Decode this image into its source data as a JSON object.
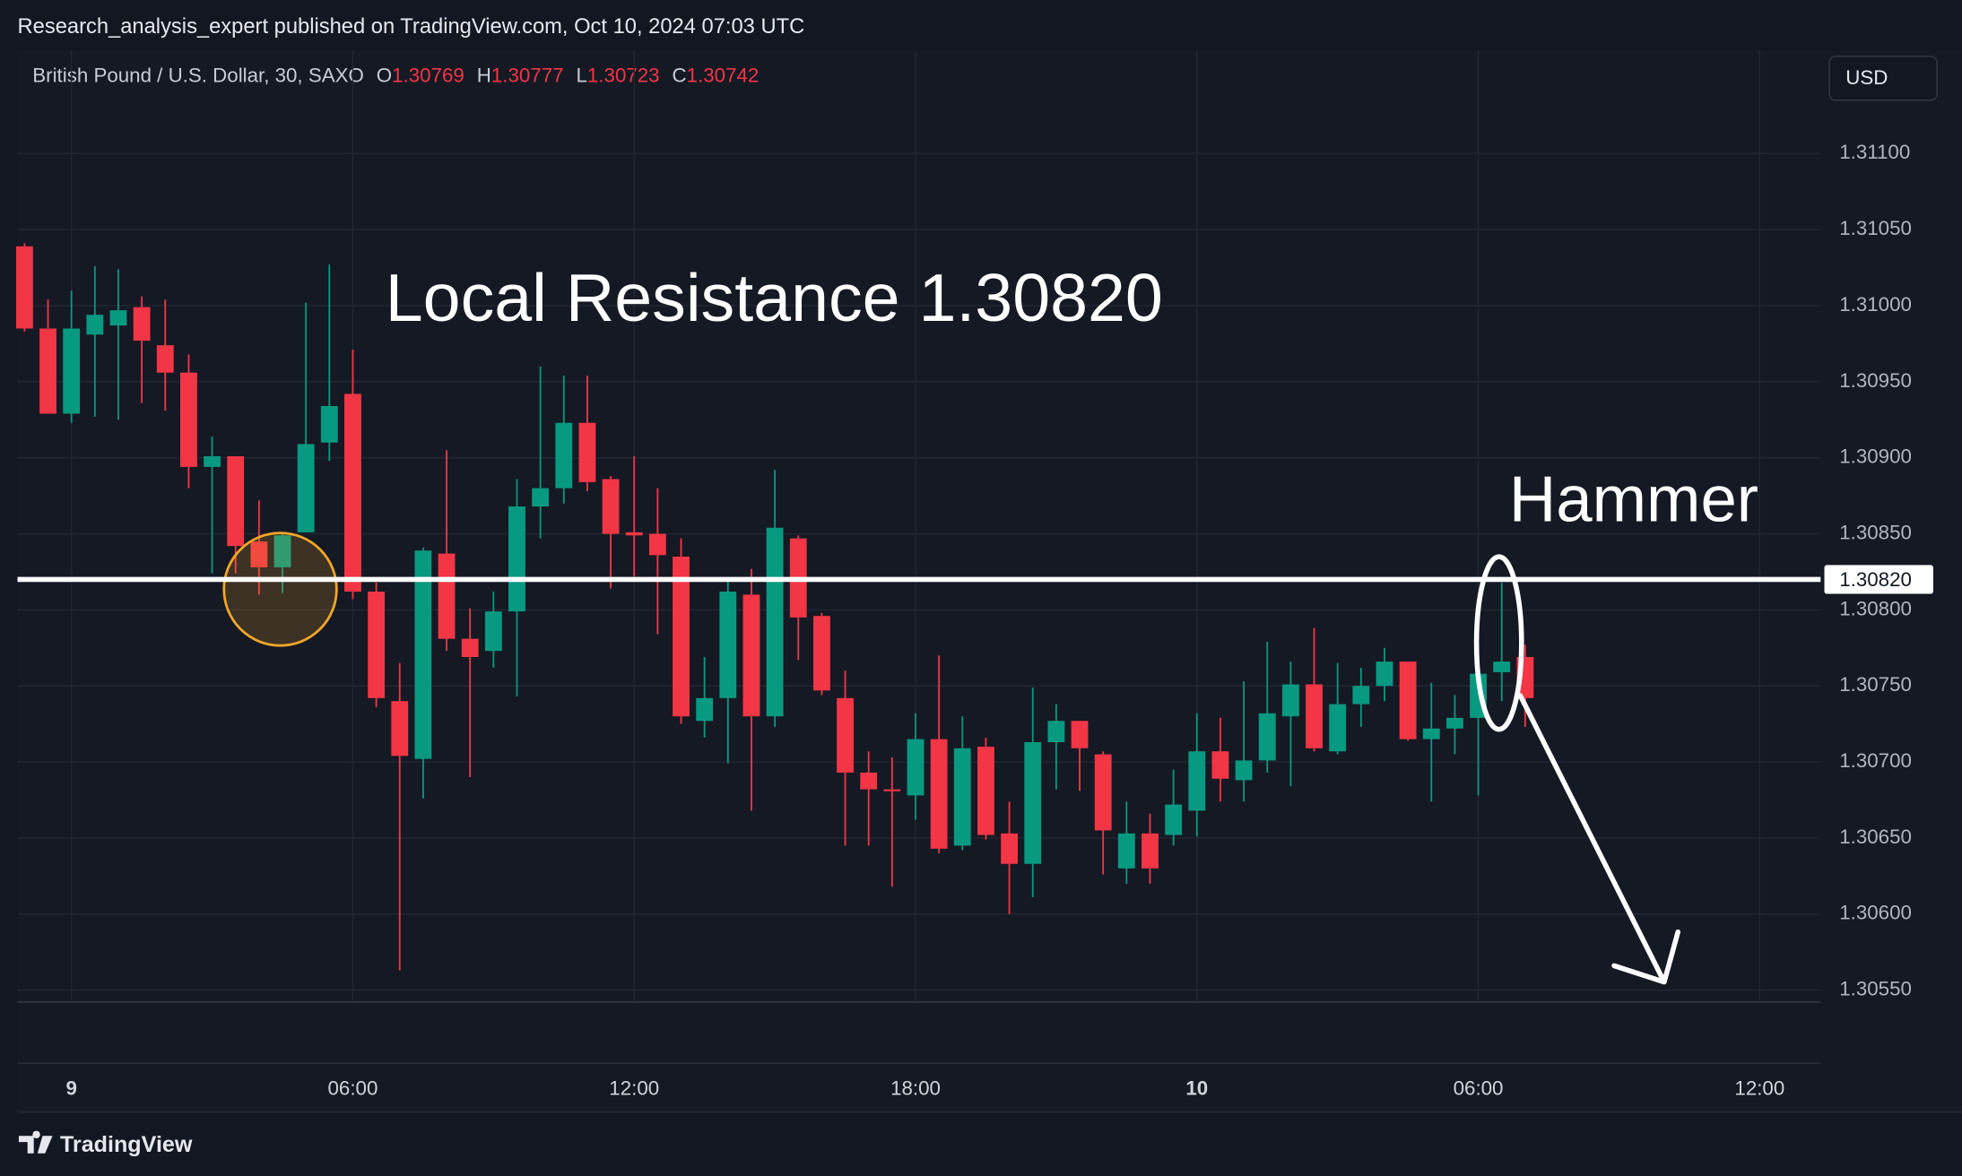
{
  "header": {
    "published": "Research_analysis_expert published on TradingView.com, Oct 10, 2024 07:03 UTC"
  },
  "footer": {
    "brand": "TradingView"
  },
  "chart_data": {
    "type": "candlestick",
    "title": "British Pound / U.S. Dollar, 30, SAXO",
    "ohlc_legend": [
      {
        "label": "O",
        "value": 1.30769
      },
      {
        "label": "H",
        "value": 1.30777
      },
      {
        "label": "L",
        "value": 1.30723
      },
      {
        "label": "C",
        "value": 1.30742
      }
    ],
    "currency": "USD",
    "up_color": "#089981",
    "down_color": "#f23645",
    "open": [
      1.31039,
      1.30985,
      1.30929,
      1.30981,
      1.30987,
      1.30999,
      1.30974,
      1.30956,
      1.30894,
      1.30901,
      1.30845,
      1.30828,
      1.30851,
      1.3091,
      1.30942,
      1.30812,
      1.3074,
      1.30702,
      1.30837,
      1.30781,
      1.30773,
      1.30799,
      1.30868,
      1.3088,
      1.30923,
      1.30886,
      1.30851,
      1.3085,
      1.30835,
      1.30727,
      1.30742,
      1.3081,
      1.3073,
      1.30847,
      1.30796,
      1.30742,
      1.30693,
      1.30682,
      1.30678,
      1.30715,
      1.30645,
      1.3071,
      1.30653,
      1.30633,
      1.30713,
      1.30727,
      1.30705,
      1.3063,
      1.30653,
      1.30652,
      1.30668,
      1.30707,
      1.30688,
      1.30701,
      1.3073,
      1.30751,
      1.30707,
      1.30738,
      1.3075,
      1.30766,
      1.30715,
      1.30722,
      1.30729,
      1.30759,
      1.30769
    ],
    "high": [
      1.31041,
      1.31004,
      1.3101,
      1.31026,
      1.31024,
      1.31006,
      1.31004,
      1.30968,
      1.30914,
      1.30901,
      1.30872,
      1.30851,
      1.31002,
      1.31027,
      1.30971,
      1.30818,
      1.30765,
      1.30841,
      1.30905,
      1.30801,
      1.30812,
      1.30886,
      1.3096,
      1.30954,
      1.30954,
      1.30888,
      1.30901,
      1.3088,
      1.30847,
      1.30769,
      1.3082,
      1.30827,
      1.30892,
      1.30849,
      1.30798,
      1.3076,
      1.30707,
      1.30703,
      1.30732,
      1.3077,
      1.3073,
      1.30716,
      1.30674,
      1.30749,
      1.30738,
      1.30727,
      1.30707,
      1.30674,
      1.30666,
      1.30695,
      1.30732,
      1.30729,
      1.30753,
      1.30779,
      1.30766,
      1.30788,
      1.30765,
      1.30762,
      1.30775,
      1.30766,
      1.30752,
      1.30744,
      1.30775,
      1.30818,
      1.30777
    ],
    "low": [
      1.30983,
      1.30929,
      1.30923,
      1.30927,
      1.30925,
      1.30936,
      1.30931,
      1.3088,
      1.30824,
      1.30824,
      1.3081,
      1.30811,
      1.30851,
      1.30898,
      1.30807,
      1.30736,
      1.30563,
      1.30676,
      1.30773,
      1.3069,
      1.30762,
      1.30743,
      1.30847,
      1.3087,
      1.30878,
      1.30814,
      1.30822,
      1.30784,
      1.30725,
      1.30716,
      1.30699,
      1.30668,
      1.30723,
      1.30767,
      1.30744,
      1.30645,
      1.30645,
      1.30618,
      1.30662,
      1.3064,
      1.30642,
      1.30649,
      1.306,
      1.30611,
      1.30682,
      1.30681,
      1.30626,
      1.3062,
      1.3062,
      1.30645,
      1.30651,
      1.30674,
      1.30674,
      1.30693,
      1.30684,
      1.30707,
      1.30705,
      1.30723,
      1.3074,
      1.30714,
      1.30674,
      1.30705,
      1.30678,
      1.3074,
      1.30723
    ],
    "close": [
      1.30985,
      1.30929,
      1.30985,
      1.30994,
      1.30997,
      1.30977,
      1.30956,
      1.30894,
      1.30901,
      1.30842,
      1.30828,
      1.30849,
      1.30909,
      1.30934,
      1.30812,
      1.30742,
      1.30704,
      1.30839,
      1.30781,
      1.30769,
      1.30799,
      1.30868,
      1.3088,
      1.30923,
      1.30884,
      1.3085,
      1.30849,
      1.30836,
      1.3073,
      1.30742,
      1.30812,
      1.3073,
      1.30854,
      1.30795,
      1.30747,
      1.30693,
      1.30682,
      1.30681,
      1.30715,
      1.30643,
      1.30709,
      1.30652,
      1.30633,
      1.30713,
      1.30727,
      1.30709,
      1.30655,
      1.30653,
      1.3063,
      1.30672,
      1.30707,
      1.30689,
      1.30701,
      1.30732,
      1.30751,
      1.30709,
      1.30738,
      1.3075,
      1.30766,
      1.30715,
      1.30722,
      1.30729,
      1.30758,
      1.30766,
      1.30742
    ],
    "xlim": [
      -0.3,
      76.6
    ],
    "xticks": [
      {
        "value": 2,
        "label": "9"
      },
      {
        "value": 14,
        "label": "06:00"
      },
      {
        "value": 26,
        "label": "12:00"
      },
      {
        "value": 38,
        "label": "18:00"
      },
      {
        "value": 50,
        "label": "10"
      },
      {
        "value": 62,
        "label": "06:00"
      },
      {
        "value": 74,
        "label": "12:00"
      }
    ],
    "ylim": [
      1.30543,
      1.31168
    ],
    "yticks": [
      {
        "value": 1.311,
        "label": "1.31100"
      },
      {
        "value": 1.3105,
        "label": "1.31050"
      },
      {
        "value": 1.31,
        "label": "1.31000"
      },
      {
        "value": 1.3095,
        "label": "1.30950"
      },
      {
        "value": 1.309,
        "label": "1.30900"
      },
      {
        "value": 1.3085,
        "label": "1.30850"
      },
      {
        "value": 1.308,
        "label": "1.30800"
      },
      {
        "value": 1.3075,
        "label": "1.30750"
      },
      {
        "value": 1.307,
        "label": "1.30700"
      },
      {
        "value": 1.3065,
        "label": "1.30650"
      },
      {
        "value": 1.306,
        "label": "1.30600"
      },
      {
        "value": 1.3055,
        "label": "1.30550"
      }
    ],
    "grid": true,
    "resistance": {
      "value": 1.3082,
      "label": "1.30820",
      "color": "#ffffff"
    },
    "annotations": [
      "Local Resistance 1.30820",
      "Hammer"
    ]
  }
}
